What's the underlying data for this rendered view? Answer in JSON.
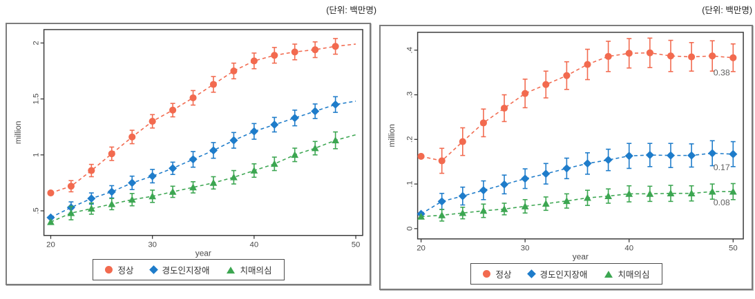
{
  "unit_label": "(단위: 백만명)",
  "colors": {
    "normal": "#f26a4f",
    "mci": "#1e7cca",
    "suspect": "#3ca651",
    "axis": "#3a3a3a",
    "tick_text": "#4a4a4a",
    "annotation": "#5f5f5f"
  },
  "chart_data": [
    {
      "type": "line",
      "title": "",
      "xlabel": "year",
      "ylabel": "million",
      "xlim": [
        19.33,
        50.68
      ],
      "ylim": [
        0.28,
        2.12
      ],
      "xticks": [
        20,
        30,
        40,
        50
      ],
      "yticks": [
        {
          "v": 0.5,
          "label": ".5"
        },
        {
          "v": 1,
          "label": "1"
        },
        {
          "v": 1.5,
          "label": "1.5"
        },
        {
          "v": 2,
          "label": "2"
        }
      ],
      "grid": false,
      "legend_position": "bottom",
      "x": [
        20,
        22,
        24,
        26,
        28,
        30,
        32,
        34,
        36,
        38,
        40,
        42,
        44,
        46,
        48
      ],
      "extend_to_x": 50,
      "series": [
        {
          "id": "normal",
          "name": "정상",
          "marker": "circle",
          "color": "#f26a4f",
          "values": [
            0.66,
            0.72,
            0.86,
            1.01,
            1.16,
            1.3,
            1.4,
            1.51,
            1.63,
            1.75,
            1.84,
            1.89,
            1.92,
            1.94,
            1.97
          ],
          "err": [
            0,
            0.05,
            0.055,
            0.06,
            0.06,
            0.06,
            0.06,
            0.065,
            0.07,
            0.07,
            0.07,
            0.07,
            0.07,
            0.07,
            0.07
          ],
          "extend_value": 1.99
        },
        {
          "id": "mci",
          "name": "경도인지장애",
          "marker": "diamond",
          "color": "#1e7cca",
          "values": [
            0.44,
            0.53,
            0.61,
            0.67,
            0.75,
            0.81,
            0.88,
            0.96,
            1.04,
            1.13,
            1.21,
            1.27,
            1.33,
            1.39,
            1.45
          ],
          "err": [
            0,
            0.05,
            0.05,
            0.055,
            0.06,
            0.06,
            0.055,
            0.07,
            0.07,
            0.07,
            0.07,
            0.065,
            0.07,
            0.065,
            0.07
          ],
          "extend_value": 1.48
        },
        {
          "id": "suspect",
          "name": "치매의심",
          "marker": "triangle",
          "color": "#3ca651",
          "values": [
            0.4,
            0.48,
            0.52,
            0.56,
            0.6,
            0.63,
            0.67,
            0.71,
            0.75,
            0.8,
            0.86,
            0.92,
            1.0,
            1.06,
            1.13
          ],
          "err": [
            0,
            0.06,
            0.05,
            0.05,
            0.055,
            0.055,
            0.05,
            0.05,
            0.055,
            0.06,
            0.06,
            0.06,
            0.06,
            0.06,
            0.075
          ],
          "extend_value": 1.18
        }
      ],
      "annotations": []
    },
    {
      "type": "line",
      "title": "",
      "xlabel": "year",
      "ylabel": "million",
      "xlim": [
        19.67,
        50.98
      ],
      "ylim": [
        -0.023,
        0.44
      ],
      "xticks": [
        20,
        30,
        40,
        50
      ],
      "yticks": [
        {
          "v": 0,
          "label": "0"
        },
        {
          "v": 0.1,
          "label": ".1"
        },
        {
          "v": 0.2,
          "label": ".2"
        },
        {
          "v": 0.3,
          "label": ".3"
        },
        {
          "v": 0.4,
          "label": ".4"
        }
      ],
      "grid": false,
      "legend_position": "bottom",
      "x": [
        20,
        22,
        24,
        26,
        28,
        30,
        32,
        34,
        36,
        38,
        40,
        42,
        44,
        46,
        48,
        50
      ],
      "series": [
        {
          "id": "normal",
          "name": "정상",
          "marker": "circle",
          "color": "#f26a4f",
          "values": [
            0.162,
            0.152,
            0.195,
            0.237,
            0.27,
            0.303,
            0.323,
            0.343,
            0.368,
            0.386,
            0.393,
            0.394,
            0.387,
            0.385,
            0.387,
            0.383
          ],
          "err": [
            0,
            0.028,
            0.031,
            0.031,
            0.03,
            0.032,
            0.03,
            0.031,
            0.034,
            0.034,
            0.033,
            0.033,
            0.035,
            0.032,
            0.034,
            0.031
          ]
        },
        {
          "id": "mci",
          "name": "경도인지장애",
          "marker": "diamond",
          "color": "#1e7cca",
          "values": [
            0.033,
            0.061,
            0.073,
            0.086,
            0.099,
            0.112,
            0.123,
            0.135,
            0.146,
            0.154,
            0.163,
            0.165,
            0.164,
            0.164,
            0.169,
            0.167
          ],
          "err": [
            0,
            0.018,
            0.02,
            0.021,
            0.021,
            0.022,
            0.023,
            0.023,
            0.024,
            0.024,
            0.028,
            0.026,
            0.027,
            0.026,
            0.028,
            0.028
          ]
        },
        {
          "id": "suspect",
          "name": "치매의심",
          "marker": "triangle",
          "color": "#3ca651",
          "values": [
            0.027,
            0.03,
            0.035,
            0.04,
            0.044,
            0.05,
            0.056,
            0.062,
            0.069,
            0.073,
            0.078,
            0.078,
            0.079,
            0.079,
            0.083,
            0.083
          ],
          "err": [
            0,
            0.013,
            0.013,
            0.015,
            0.013,
            0.015,
            0.015,
            0.016,
            0.017,
            0.016,
            0.018,
            0.017,
            0.018,
            0.017,
            0.017,
            0.018
          ]
        }
      ],
      "annotations": [
        {
          "text": "0.38",
          "x": 48.9,
          "y": 0.343
        },
        {
          "text": "0.17",
          "x": 48.9,
          "y": 0.131
        },
        {
          "text": "0.08",
          "x": 48.9,
          "y": 0.052
        }
      ]
    }
  ]
}
